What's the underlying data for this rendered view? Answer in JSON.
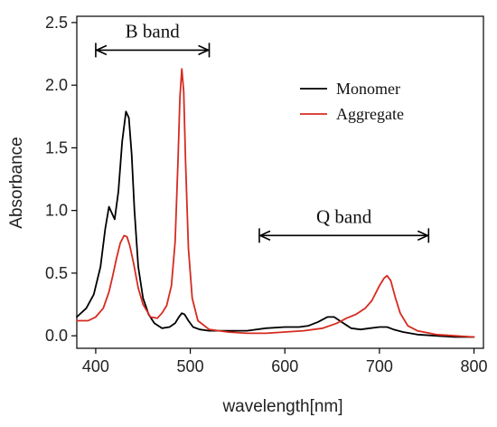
{
  "chart_data": {
    "type": "line",
    "xlabel": "wavelength[nm]",
    "ylabel": "Absorbance",
    "xlim": [
      380,
      810
    ],
    "ylim": [
      -0.1,
      2.55
    ],
    "x_ticks": [
      {
        "value": 400,
        "label": "400"
      },
      {
        "value": 500,
        "label": "500"
      },
      {
        "value": 600,
        "label": "600"
      },
      {
        "value": 700,
        "label": "700"
      },
      {
        "value": 800,
        "label": "800"
      }
    ],
    "y_ticks": [
      {
        "value": 0.0,
        "label": "0.0"
      },
      {
        "value": 0.5,
        "label": "0.5"
      },
      {
        "value": 1.0,
        "label": "1.0"
      },
      {
        "value": 1.5,
        "label": "1.5"
      },
      {
        "value": 2.0,
        "label": "2.0"
      },
      {
        "value": 2.5,
        "label": "2.5"
      }
    ],
    "grid": false,
    "legend": {
      "placement": "top-right",
      "entries": [
        {
          "name": "Monomer",
          "color": "#000000"
        },
        {
          "name": "Aggregate",
          "color": "#d62b1f"
        }
      ]
    },
    "annotations": [
      {
        "text": "B band",
        "x_start": 400,
        "x_end": 520,
        "y": 2.28
      },
      {
        "text": "Q band",
        "x_start": 573,
        "x_end": 752,
        "y": 0.8
      }
    ],
    "series": [
      {
        "name": "Monomer",
        "color": "#000000",
        "x": [
          380,
          390,
          398,
          405,
          410,
          414,
          417,
          420,
          424,
          428,
          432,
          435,
          438,
          441,
          445,
          450,
          456,
          462,
          470,
          478,
          484,
          488,
          491,
          494,
          498,
          503,
          510,
          520,
          540,
          560,
          580,
          600,
          615,
          625,
          635,
          645,
          652,
          660,
          670,
          680,
          690,
          700,
          708,
          715,
          725,
          740,
          760,
          780,
          800
        ],
        "y": [
          0.15,
          0.22,
          0.33,
          0.55,
          0.85,
          1.03,
          0.98,
          0.93,
          1.15,
          1.55,
          1.79,
          1.74,
          1.45,
          1.0,
          0.55,
          0.3,
          0.17,
          0.1,
          0.06,
          0.07,
          0.1,
          0.15,
          0.18,
          0.17,
          0.12,
          0.07,
          0.05,
          0.04,
          0.04,
          0.04,
          0.06,
          0.07,
          0.07,
          0.08,
          0.11,
          0.15,
          0.15,
          0.11,
          0.06,
          0.05,
          0.06,
          0.07,
          0.07,
          0.05,
          0.03,
          0.01,
          0.0,
          -0.01,
          -0.01
        ]
      },
      {
        "name": "Aggregate",
        "color": "#d62b1f",
        "x": [
          380,
          392,
          400,
          408,
          414,
          418,
          422,
          426,
          430,
          433,
          436,
          440,
          445,
          450,
          458,
          465,
          470,
          475,
          480,
          484,
          487,
          489,
          491,
          493,
          495,
          498,
          502,
          508,
          520,
          540,
          560,
          580,
          600,
          620,
          640,
          655,
          665,
          675,
          685,
          692,
          700,
          705,
          708,
          712,
          717,
          722,
          730,
          740,
          760,
          780,
          800
        ],
        "y": [
          0.12,
          0.12,
          0.15,
          0.22,
          0.35,
          0.48,
          0.62,
          0.74,
          0.8,
          0.79,
          0.72,
          0.58,
          0.38,
          0.25,
          0.15,
          0.14,
          0.18,
          0.24,
          0.4,
          0.75,
          1.4,
          1.9,
          2.13,
          1.95,
          1.4,
          0.7,
          0.3,
          0.12,
          0.05,
          0.03,
          0.02,
          0.02,
          0.03,
          0.04,
          0.06,
          0.1,
          0.14,
          0.17,
          0.22,
          0.28,
          0.4,
          0.46,
          0.48,
          0.44,
          0.3,
          0.18,
          0.08,
          0.04,
          0.01,
          0.0,
          -0.01
        ]
      }
    ]
  }
}
